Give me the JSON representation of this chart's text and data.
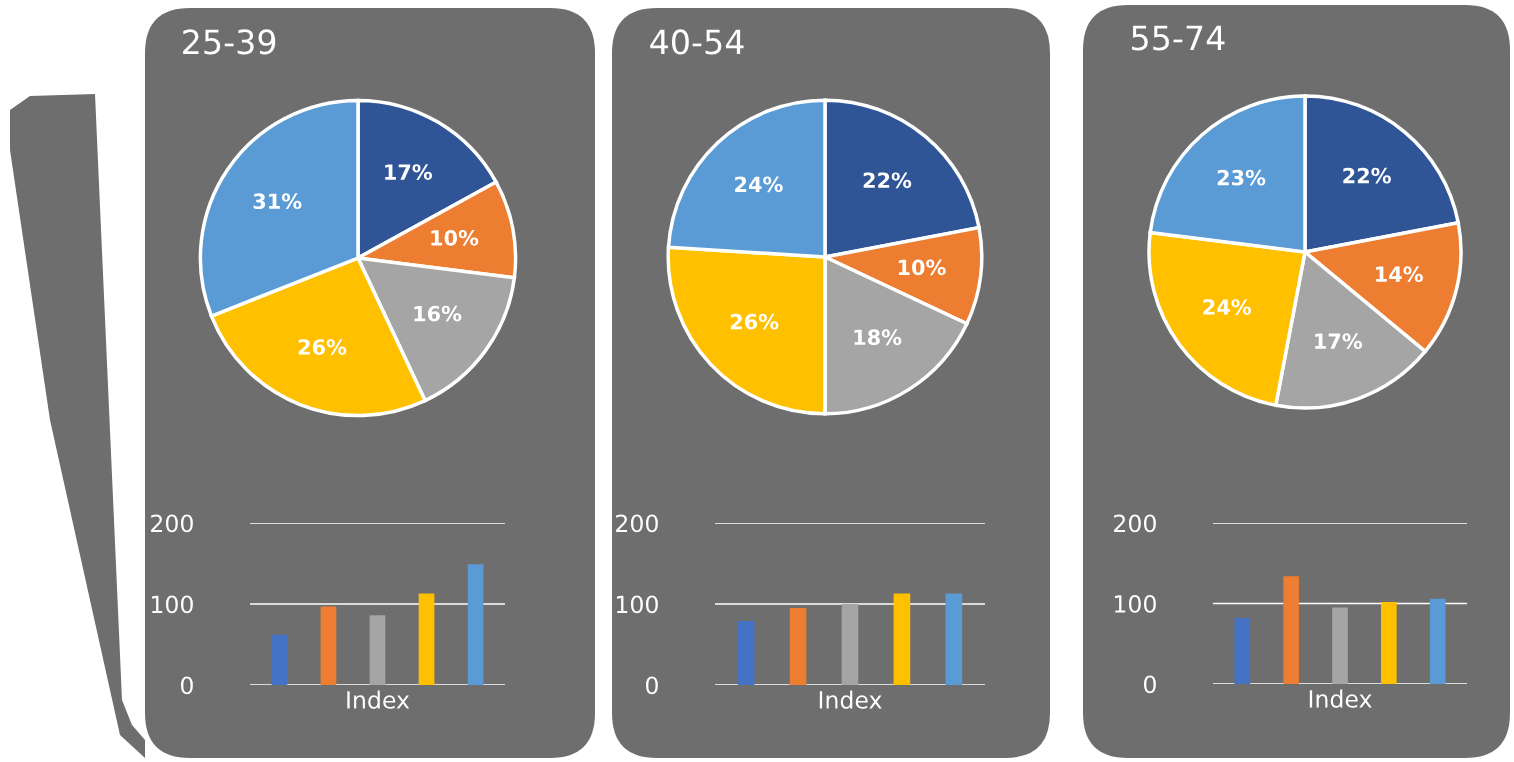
{
  "chart_data": [
    {
      "type": "pie",
      "title": "25-39",
      "categories": [
        null,
        null,
        null,
        null,
        null
      ],
      "values": [
        17,
        10,
        16,
        26,
        31
      ],
      "value_labels": [
        "17%",
        "10%",
        "16%",
        "26%",
        "31%"
      ],
      "colors": [
        "#2f5597",
        "#ed7d31",
        "#a5a5a5",
        "#ffc000",
        "#5b9bd5"
      ]
    },
    {
      "type": "bar",
      "xlabel": "Index",
      "categories": [
        null,
        null,
        null,
        null,
        null
      ],
      "values": [
        62,
        97,
        86,
        113,
        149
      ],
      "colors": [
        "#4472c4",
        "#ed7d31",
        "#a5a5a5",
        "#ffc000",
        "#5b9bd5"
      ],
      "ylim": [
        0,
        200
      ],
      "yticks": [
        0,
        100,
        200
      ],
      "grid": "y",
      "tick_labels": "y"
    },
    {
      "type": "pie",
      "title": "40-54",
      "categories": [
        null,
        null,
        null,
        null,
        null
      ],
      "values": [
        22,
        10,
        18,
        26,
        24
      ],
      "value_labels": [
        "22%",
        "10%",
        "18%",
        "26%",
        "24%"
      ],
      "colors": [
        "#2f5597",
        "#ed7d31",
        "#a5a5a5",
        "#ffc000",
        "#5b9bd5"
      ]
    },
    {
      "type": "bar",
      "xlabel": "Index",
      "categories": [
        null,
        null,
        null,
        null,
        null
      ],
      "values": [
        79,
        95,
        100,
        113,
        113
      ],
      "colors": [
        "#4472c4",
        "#ed7d31",
        "#a5a5a5",
        "#ffc000",
        "#5b9bd5"
      ],
      "ylim": [
        0,
        200
      ],
      "yticks": [
        0,
        100,
        200
      ],
      "grid": "y",
      "tick_labels": "y"
    },
    {
      "type": "pie",
      "title": "55-74",
      "categories": [
        null,
        null,
        null,
        null,
        null
      ],
      "values": [
        22,
        14,
        17,
        24,
        23
      ],
      "value_labels": [
        "22%",
        "14%",
        "17%",
        "24%",
        "23%"
      ],
      "colors": [
        "#2f5597",
        "#ed7d31",
        "#a5a5a5",
        "#ffc000",
        "#5b9bd5"
      ]
    },
    {
      "type": "bar",
      "xlabel": "Index",
      "categories": [
        null,
        null,
        null,
        null,
        null
      ],
      "values": [
        82,
        134,
        95,
        102,
        106
      ],
      "colors": [
        "#4472c4",
        "#ed7d31",
        "#a5a5a5",
        "#ffc000",
        "#5b9bd5"
      ],
      "ylim": [
        0,
        200
      ],
      "yticks": [
        0,
        100,
        200
      ],
      "grid": "y",
      "tick_labels": "y"
    }
  ]
}
